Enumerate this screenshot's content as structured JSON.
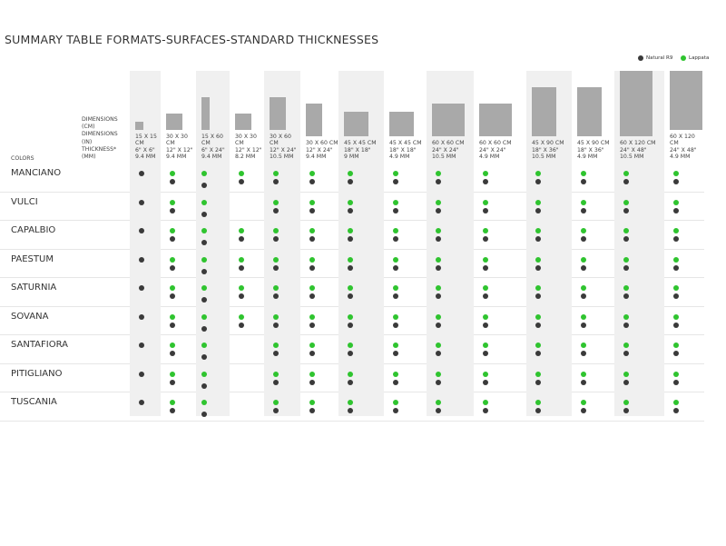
{
  "title": "SUMMARY TABLE FORMATS-SURFACES-STANDARD THICKNESSES",
  "legend": {
    "natural": "Natural R9",
    "lappata": "Lappata"
  },
  "header": {
    "dimensions": [
      "DIMENSIONS (CM)",
      "DIMENSIONS (IN)",
      "THICKNESS* (MM)"
    ],
    "colors": "COLORS"
  },
  "columns": [
    {
      "cm": "15 X 15 CM",
      "in": "6\" X 6\"",
      "mm": "9.4 MM"
    },
    {
      "cm": "30 X 30 CM",
      "in": "12\" X 12\"",
      "mm": "9.4 MM"
    },
    {
      "cm": "15 X 60 CM",
      "in": "6\" X 24\"",
      "mm": "9.4 MM"
    },
    {
      "cm": "30 X 30 CM",
      "in": "12\" X 12\"",
      "mm": "8.2 MM"
    },
    {
      "cm": "30 X 60 CM",
      "in": "12\" X 24\"",
      "mm": "10.5 MM"
    },
    {
      "cm": "30 X 60 CM",
      "in": "12\" X 24\"",
      "mm": "9.4 MM"
    },
    {
      "cm": "45 X 45 CM",
      "in": "18\" X 18\"",
      "mm": "9 MM"
    },
    {
      "cm": "45 X 45 CM",
      "in": "18\" X 18\"",
      "mm": "4.9 MM"
    },
    {
      "cm": "60 X 60 CM",
      "in": "24\" X 24\"",
      "mm": "10.5 MM"
    },
    {
      "cm": "60 X 60 CM",
      "in": "24\" X 24\"",
      "mm": "4.9 MM"
    },
    {
      "cm": "45 X 90 CM",
      "in": "18\" X 36\"",
      "mm": "10.5 MM"
    },
    {
      "cm": "45 X 90 CM",
      "in": "18\" X 36\"",
      "mm": "4.9 MM"
    },
    {
      "cm": "60 X 120 CM",
      "in": "24\" X 48\"",
      "mm": "10.5 MM"
    },
    {
      "cm": "60 X 120 CM",
      "in": "24\" X 48\"",
      "mm": "4.9 MM"
    }
  ],
  "rows": [
    {
      "name": "MANCIANO",
      "format_4": true
    },
    {
      "name": "VULCI",
      "format_4": false
    },
    {
      "name": "CAPALBIO",
      "format_4": true
    },
    {
      "name": "PAESTUM",
      "format_4": true
    },
    {
      "name": "SATURNIA",
      "format_4": true
    },
    {
      "name": "SOVANA",
      "format_4": true
    },
    {
      "name": "SANTAFIORA",
      "format_4": false
    },
    {
      "name": "PITIGLIANO",
      "format_4": false
    },
    {
      "name": "TUSCANIA",
      "format_4": false
    }
  ]
}
